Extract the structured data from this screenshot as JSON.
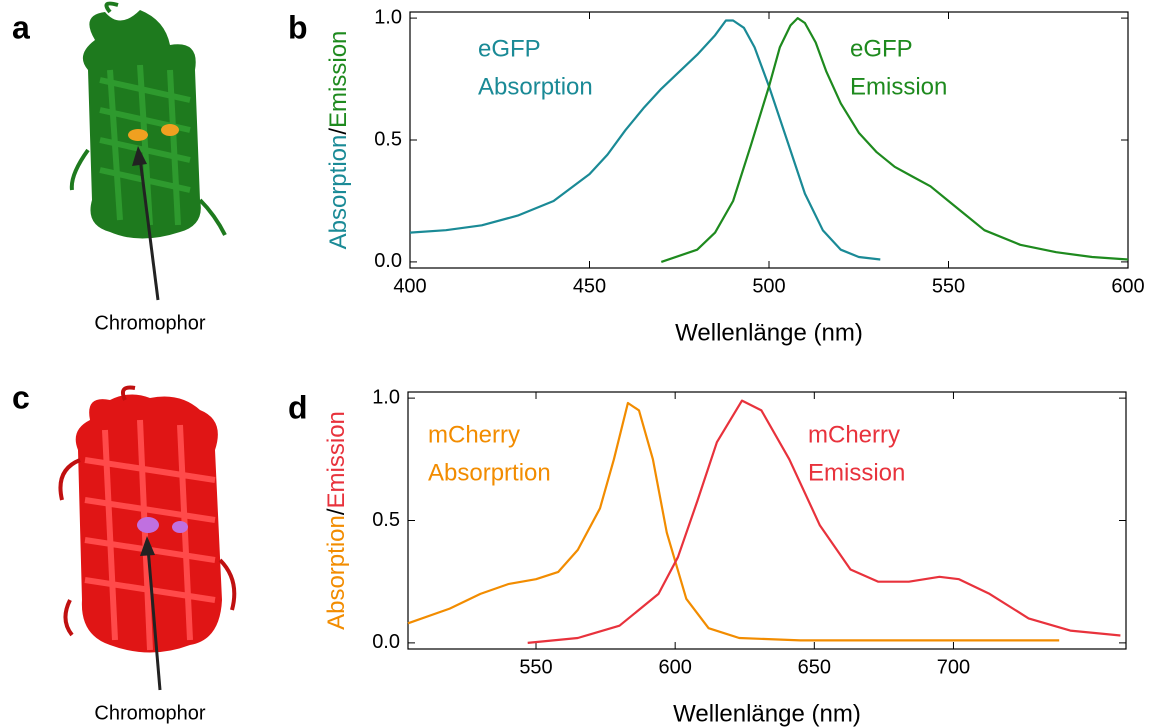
{
  "structures": [
    {
      "panel_label": "a",
      "caption": "Chromophor"
    },
    {
      "panel_label": "c",
      "caption": "Chromophor"
    }
  ],
  "chart_data": [
    {
      "type": "line",
      "panel_label": "b",
      "xlabel": "Wellenlänge (nm)",
      "ylabel_parts": [
        {
          "text": "Absorption",
          "color": "#1a8a96"
        },
        {
          "text": "/",
          "color": "#000000"
        },
        {
          "text": "Emission",
          "color": "#1e8a1e"
        }
      ],
      "xlim": [
        400,
        600
      ],
      "xticks": [
        400,
        450,
        500,
        550,
        600
      ],
      "ylim": [
        -0.025,
        1.025
      ],
      "yticks": [
        {
          "value": 0,
          "label": "0.0"
        },
        {
          "value": 0.5,
          "label": "0.5"
        },
        {
          "value": 1,
          "label": "1.0"
        }
      ],
      "series": [
        {
          "label_lines": [
            "eGFP",
            "Absorption"
          ],
          "color": "#1a8a96",
          "x": [
            400,
            410,
            420,
            430,
            440,
            450,
            455,
            460,
            465,
            470,
            475,
            480,
            485,
            488,
            490,
            493,
            496,
            500,
            505,
            510,
            515,
            520,
            525,
            531
          ],
          "values": [
            0.12,
            0.13,
            0.15,
            0.19,
            0.25,
            0.36,
            0.44,
            0.54,
            0.63,
            0.71,
            0.78,
            0.85,
            0.93,
            0.99,
            0.99,
            0.96,
            0.88,
            0.72,
            0.5,
            0.28,
            0.13,
            0.05,
            0.02,
            0.01
          ]
        },
        {
          "label_lines": [
            "eGFP",
            "Emission"
          ],
          "color": "#1e8a1e",
          "x": [
            470,
            480,
            485,
            490,
            495,
            500,
            503,
            506,
            508,
            510,
            513,
            516,
            520,
            525,
            530,
            535,
            540,
            545,
            550,
            555,
            560,
            570,
            580,
            590,
            600
          ],
          "values": [
            0.0,
            0.05,
            0.12,
            0.25,
            0.48,
            0.72,
            0.88,
            0.97,
            1.0,
            0.98,
            0.9,
            0.78,
            0.65,
            0.53,
            0.45,
            0.39,
            0.35,
            0.31,
            0.25,
            0.19,
            0.13,
            0.07,
            0.04,
            0.02,
            0.01
          ]
        }
      ]
    },
    {
      "type": "line",
      "panel_label": "d",
      "xlabel": "Wellenlänge (nm)",
      "ylabel_parts": [
        {
          "text": "Absorption",
          "color": "#f28c00"
        },
        {
          "text": "/",
          "color": "#000000"
        },
        {
          "text": "Emission",
          "color": "#e8323c"
        }
      ],
      "xlim": [
        504,
        762
      ],
      "xticks": [
        550,
        600,
        650,
        700
      ],
      "ylim": [
        -0.025,
        1.025
      ],
      "yticks": [
        {
          "value": 0,
          "label": "0.0"
        },
        {
          "value": 0.5,
          "label": "0.5"
        },
        {
          "value": 1,
          "label": "1.0"
        }
      ],
      "series": [
        {
          "label_lines": [
            "mCherry",
            "Absorprtion"
          ],
          "color": "#f28c00",
          "x": [
            504,
            519,
            530,
            540,
            550,
            558,
            565,
            573,
            578,
            583,
            587,
            592,
            597,
            604,
            612,
            623,
            645,
            738
          ],
          "values": [
            0.08,
            0.14,
            0.2,
            0.24,
            0.26,
            0.29,
            0.38,
            0.55,
            0.75,
            0.98,
            0.95,
            0.75,
            0.45,
            0.18,
            0.06,
            0.02,
            0.01,
            0.01
          ]
        },
        {
          "label_lines": [
            "mCherry",
            "Emission"
          ],
          "color": "#e8323c",
          "x": [
            547,
            565,
            580,
            594,
            601,
            608,
            615,
            624,
            631,
            641,
            652,
            663,
            673,
            684,
            695,
            702,
            713,
            727,
            742,
            760
          ],
          "values": [
            0.0,
            0.02,
            0.07,
            0.2,
            0.35,
            0.58,
            0.82,
            0.99,
            0.95,
            0.75,
            0.48,
            0.3,
            0.25,
            0.25,
            0.27,
            0.26,
            0.2,
            0.1,
            0.05,
            0.03
          ]
        }
      ]
    }
  ]
}
